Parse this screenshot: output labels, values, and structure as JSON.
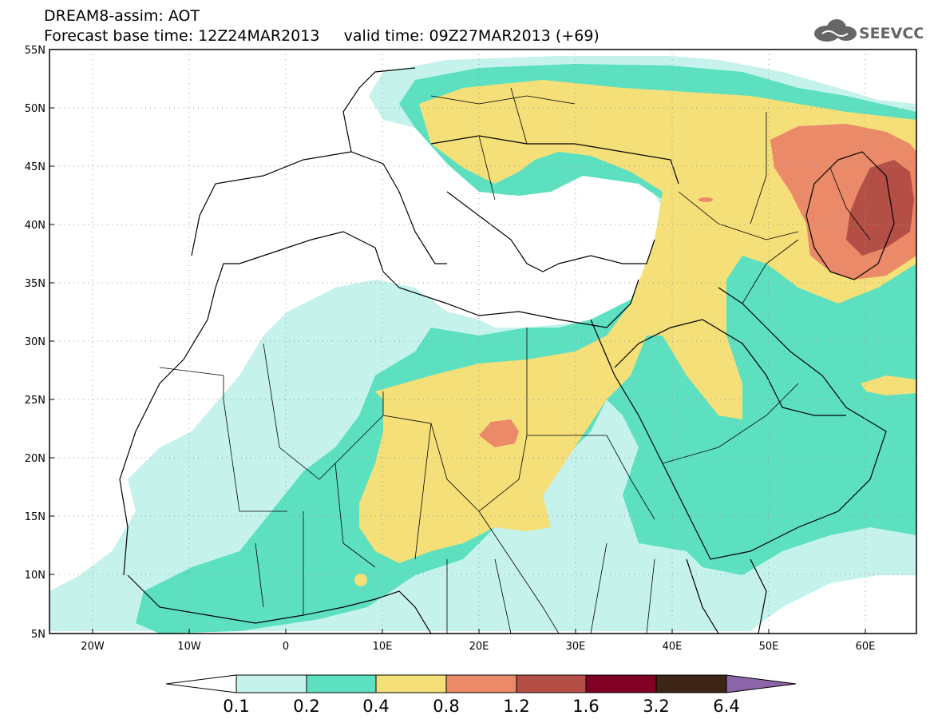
{
  "header": {
    "line1": "DREAM8-assim: AOT",
    "line2": "Forecast base time: 12Z24MAR2013     valid time: 09Z27MAR2013 (+69)",
    "logo_text": "SEEVCCC"
  },
  "map": {
    "lat_labels": [
      "55N",
      "50N",
      "45N",
      "40N",
      "35N",
      "30N",
      "25N",
      "20N",
      "15N",
      "10N",
      "5N"
    ],
    "lon_labels": [
      "20W",
      "10W",
      "0",
      "10E",
      "20E",
      "30E",
      "40E",
      "50E",
      "60E"
    ]
  },
  "colorbar": {
    "labels": [
      "0.1",
      "0.2",
      "0.4",
      "0.8",
      "1.2",
      "1.6",
      "3.2",
      "6.4"
    ],
    "colors": [
      "#c5f3ec",
      "#5ce0c0",
      "#f4df78",
      "#ea8a68",
      "#b44f45",
      "#800026",
      "#3c2514",
      "#8c64a8"
    ],
    "under_color": "#ffffff"
  },
  "map_colors": {
    "ocean": "#ffffff",
    "levels": [
      "#c5f3ec",
      "#5ce0c0",
      "#f4df78",
      "#ea8a68",
      "#b44f45"
    ]
  }
}
